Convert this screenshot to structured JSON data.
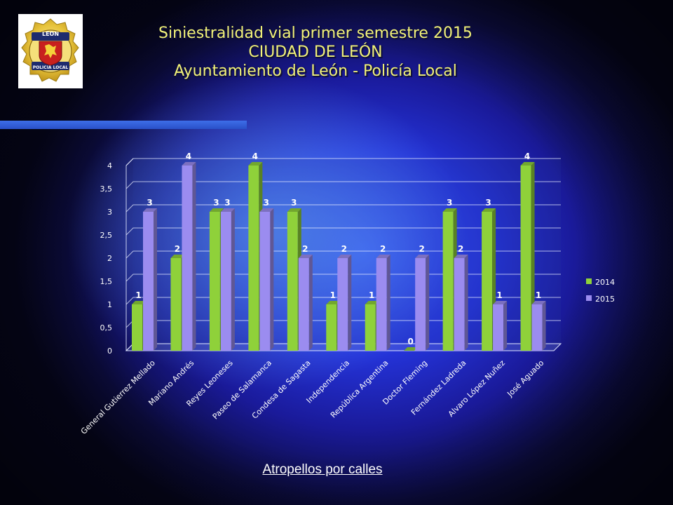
{
  "header": {
    "title_line1": "Siniestralidad vial primer semestre 2015",
    "title_line2": "CIUDAD DE LEÓN",
    "title_line3": "Ayuntamiento de León - Policía Local"
  },
  "logo": {
    "top_text": "LEON",
    "bottom_text": "POLICIA LOCAL"
  },
  "caption": "Atropellos por calles",
  "colors": {
    "series_2014": "#8fd13a",
    "series_2015": "#9b8cf0",
    "title": "#f2f27a"
  },
  "chart_data": {
    "type": "bar",
    "categories": [
      "General Gutierrez Mellado",
      "Mariano Andrés",
      "Reyes Leoneses",
      "Paseo de Salamanca",
      "Condesa de Sagasta",
      "Independencia",
      "República Argentina",
      "Doctor Fleming",
      "Fernández Ladreda",
      "Alvaro López Nuñez",
      "José Aguado"
    ],
    "series": [
      {
        "name": "2014",
        "values": [
          1,
          2,
          3,
          4,
          3,
          1,
          1,
          0,
          3,
          3,
          4
        ]
      },
      {
        "name": "2015",
        "values": [
          3,
          4,
          3,
          3,
          2,
          2,
          2,
          2,
          2,
          1,
          1
        ]
      }
    ],
    "yticks": [
      "0",
      "0,5",
      "1",
      "1,5",
      "2",
      "2,5",
      "3",
      "3,5",
      "4"
    ],
    "ylim": [
      0,
      4
    ],
    "legend_position": "right",
    "grid": true,
    "title": "",
    "xlabel": "",
    "ylabel": ""
  }
}
